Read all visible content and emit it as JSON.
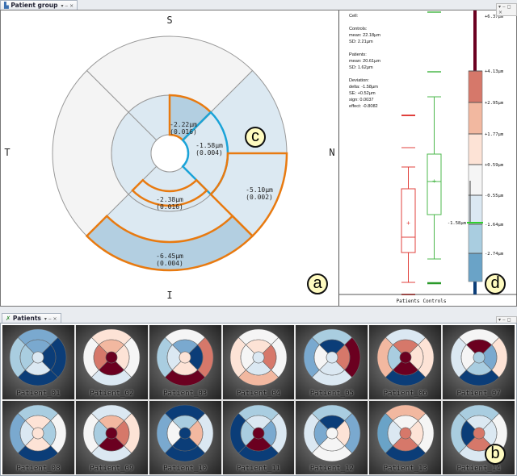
{
  "top_panel": {
    "tab_title": "Patient group",
    "tab_controls": "▾ ‒ ×"
  },
  "diagram": {
    "directions": {
      "superior": "S",
      "temporal": "T",
      "nasal": "N",
      "inferior": "I"
    },
    "cells": [
      {
        "id": "inner-superior-nasal",
        "value": "-2.22µm",
        "p": "(0.016)",
        "fill": "#b3cfe1",
        "highlight": "orange"
      },
      {
        "id": "inner-nasal",
        "value": "-1.58µm",
        "p": "(0.004)",
        "fill": "#dce9f2",
        "highlight": "blue"
      },
      {
        "id": "inner-inferior-band",
        "value": "-2.38µm",
        "p": "(0.016)",
        "fill": "#dce9f2",
        "highlight": "orange"
      },
      {
        "id": "outer-nasal-lower",
        "value": "-5.10µm",
        "p": "(0.002)",
        "fill": "#dce9f2",
        "highlight": "orange"
      },
      {
        "id": "outer-inferior-band",
        "value": "-6.45µm",
        "p": "(0.004)",
        "fill": "#b3cfe1",
        "highlight": "orange"
      }
    ],
    "colors": {
      "neutral": "#f4f4f4",
      "light_blue": "#dce9f2",
      "mid_blue": "#b3cfe1",
      "orange": "#e87a10",
      "cyan": "#1aa3d8"
    }
  },
  "stats": {
    "cell_label": "Cell:",
    "controls_title": "Controls:",
    "controls_mean": "mean: 22.18µm",
    "controls_sd": "SD: 2.21µm",
    "patients_title": "Patients:",
    "patients_mean": "mean: 20.61µm",
    "patients_sd": "SD: 1.62µm",
    "deviation_title": "Deviation:",
    "delta": "delta: -1.58µm",
    "se": "SE: +0.52µm",
    "sign": "sign: 0.0037",
    "effect": "effect: -0.8082"
  },
  "boxplot": {
    "categories": [
      "Patients",
      "Controls"
    ],
    "colors": {
      "Patients": "#e0403c",
      "Controls": "#4cb84c"
    }
  },
  "colorbar": {
    "ticks": [
      "+6.37µm",
      "+4.13µm",
      "+2.95µm",
      "+1.77µm",
      "+0.59µm",
      "-0.55µm",
      "-1.64µm",
      "-2.74µm"
    ],
    "marker_label": "-1.58µm",
    "bins": [
      "#d6786a",
      "#f2b8a0",
      "#fde3d6",
      "#f5f5f5",
      "#dbe8f2",
      "#a9cde0",
      "#6aa3c7"
    ]
  },
  "bottom_panel": {
    "tab_title": "Patients",
    "tab_controls": "▾ ‒ ×",
    "window_controls": "▾ ‒ ◻ ×"
  },
  "patients": [
    {
      "name": "Patient_01",
      "colors": [
        "#0b3d78",
        "#7aa9cf",
        "#a9cde0",
        "#0b3d78",
        "#0b3d78",
        "#7aa9cf",
        "#a9cde0",
        "#dbe8f2"
      ]
    },
    {
      "name": "Patient_02",
      "colors": [
        "#f5f5f5",
        "#fde3d6",
        "#f5f5f5",
        "#dbe8f2",
        "#fde3d6",
        "#f2b8a0",
        "#d6786a",
        "#6b0020"
      ]
    },
    {
      "name": "Patient_03",
      "colors": [
        "#d6786a",
        "#f5f5f5",
        "#a9cde0",
        "#6b0020",
        "#0b3d78",
        "#7aa9cf",
        "#dbe8f2",
        "#fde3d6"
      ]
    },
    {
      "name": "Patient_04",
      "colors": [
        "#f5f5f5",
        "#f5f5f5",
        "#fde3d6",
        "#f2b8a0",
        "#d6786a",
        "#fde3d6",
        "#f5f5f5",
        "#dbe8f2"
      ]
    },
    {
      "name": "Patient_05",
      "colors": [
        "#6b0020",
        "#a9cde0",
        "#7aa9cf",
        "#dbe8f2",
        "#d6786a",
        "#0b3d78",
        "#f5f5f5",
        "#dbe8f2"
      ]
    },
    {
      "name": "Patient_06",
      "colors": [
        "#fde3d6",
        "#dbe8f2",
        "#f2b8a0",
        "#0b3d78",
        "#fde3d6",
        "#d6786a",
        "#a9cde0",
        "#6b0020"
      ]
    },
    {
      "name": "Patient_07",
      "colors": [
        "#fde3d6",
        "#f5f5f5",
        "#dbe8f2",
        "#0b3d78",
        "#7aa9cf",
        "#6b0020",
        "#f5f5f5",
        "#a9cde0"
      ]
    },
    {
      "name": "Patient_08",
      "colors": [
        "#f5f5f5",
        "#a9cde0",
        "#7aa9cf",
        "#0b3d78",
        "#a9cde0",
        "#fde3d6",
        "#dbe8f2",
        "#fde3d6"
      ]
    },
    {
      "name": "Patient_09",
      "colors": [
        "#fde3d6",
        "#dbe8f2",
        "#f5f5f5",
        "#dbe8f2",
        "#d6786a",
        "#f2b8a0",
        "#a9cde0",
        "#6b0020"
      ]
    },
    {
      "name": "Patient_10",
      "colors": [
        "#dbe8f2",
        "#0b3d78",
        "#7aa9cf",
        "#0b3d78",
        "#f2b8a0",
        "#a9cde0",
        "#f5f5f5",
        "#0b3d78"
      ]
    },
    {
      "name": "Patient_11",
      "colors": [
        "#dbe8f2",
        "#a9cde0",
        "#0b3d78",
        "#0b3d78",
        "#7aa9cf",
        "#dbe8f2",
        "#a9cde0",
        "#6b0020"
      ]
    },
    {
      "name": "Patient_12",
      "colors": [
        "#7aa9cf",
        "#a9cde0",
        "#dbe8f2",
        "#f5f5f5",
        "#fde3d6",
        "#0b3d78",
        "#7aa9cf",
        "#f5f5f5"
      ]
    },
    {
      "name": "Patient_13",
      "colors": [
        "#f5f5f5",
        "#f2b8a0",
        "#6aa3c7",
        "#0b3d78",
        "#fde3d6",
        "#f5f5f5",
        "#dbe8f2",
        "#d6786a"
      ]
    },
    {
      "name": "Patient_14",
      "colors": [
        "#f5f5f5",
        "#a9cde0",
        "#a9cde0",
        "#dbe8f2",
        "#dbe8f2",
        "#dbe8f2",
        "#0b3d78",
        "#d6786a"
      ]
    }
  ],
  "labels": {
    "a": "a",
    "b": "b",
    "c": "c",
    "d": "d"
  }
}
